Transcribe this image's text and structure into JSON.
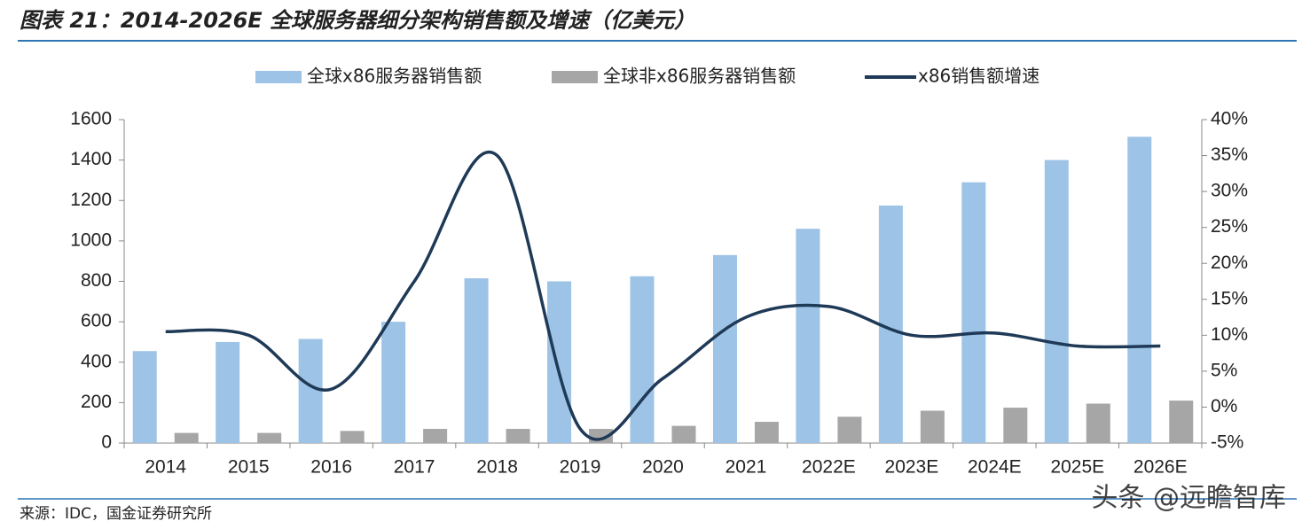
{
  "chart_data": {
    "type": "bar-line",
    "title": "图表 21：2014-2026E 全球服务器细分架构销售额及增速（亿美元）",
    "source": "来源：IDC，国金证券研究所",
    "watermark": "头条 @远瞻智库",
    "categories": [
      "2014",
      "2015",
      "2016",
      "2017",
      "2018",
      "2019",
      "2020",
      "2021",
      "2022E",
      "2023E",
      "2024E",
      "2025E",
      "2026E"
    ],
    "series": [
      {
        "name": "全球x86服务器销售额",
        "type": "bar",
        "color": "#9dc3e6",
        "values": [
          455,
          500,
          515,
          600,
          815,
          800,
          825,
          930,
          1060,
          1175,
          1290,
          1400,
          1515
        ]
      },
      {
        "name": "全球非x86服务器销售额",
        "type": "bar",
        "color": "#a6a6a6",
        "values": [
          50,
          50,
          60,
          70,
          70,
          70,
          85,
          105,
          130,
          160,
          175,
          195,
          210
        ]
      },
      {
        "name": "x86销售额增速",
        "type": "line",
        "axis": "y2",
        "color": "#1f3a57",
        "values": [
          10.5,
          10,
          2.5,
          17.5,
          35,
          -3,
          4,
          12.5,
          14,
          10,
          10.3,
          8.5,
          8.5
        ]
      }
    ],
    "ylim": [
      0,
      1600
    ],
    "yticks": [
      0,
      200,
      400,
      600,
      800,
      1000,
      1200,
      1400,
      1600
    ],
    "y2lim": [
      -5,
      40
    ],
    "y2ticks": [
      {
        "value": -5,
        "label": "-5%"
      },
      {
        "value": 0,
        "label": "0%"
      },
      {
        "value": 5,
        "label": "5%"
      },
      {
        "value": 10,
        "label": "10%"
      },
      {
        "value": 15,
        "label": "15%"
      },
      {
        "value": 20,
        "label": "20%"
      },
      {
        "value": 25,
        "label": "25%"
      },
      {
        "value": 30,
        "label": "30%"
      },
      {
        "value": 35,
        "label": "35%"
      },
      {
        "value": 40,
        "label": "40%"
      }
    ],
    "grid": false,
    "legend": "top"
  }
}
